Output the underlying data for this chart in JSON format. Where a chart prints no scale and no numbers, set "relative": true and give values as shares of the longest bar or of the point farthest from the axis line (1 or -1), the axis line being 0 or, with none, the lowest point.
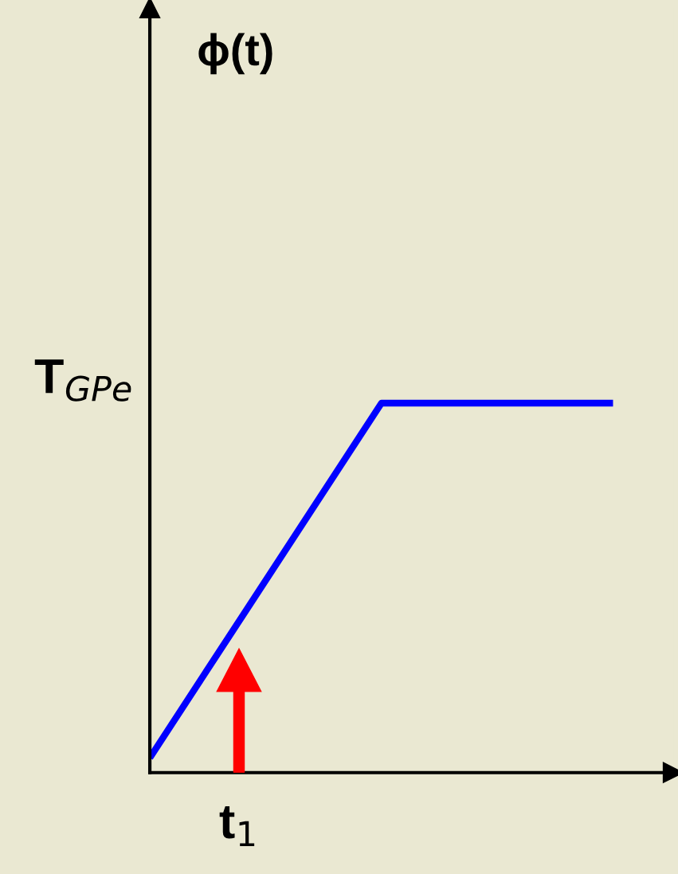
{
  "chart_data": {
    "type": "line",
    "relative": true,
    "categories": [
      null,
      null,
      null
    ],
    "series": [
      {
        "color": "#0000ff",
        "values": [
          0.04,
          1,
          1
        ]
      }
    ],
    "annotations": [
      "ϕ(t)",
      "T$_{GPe}$",
      "t$_{1}$"
    ],
    "legend": false,
    "marker": "none",
    "line_style": "solid"
  }
}
